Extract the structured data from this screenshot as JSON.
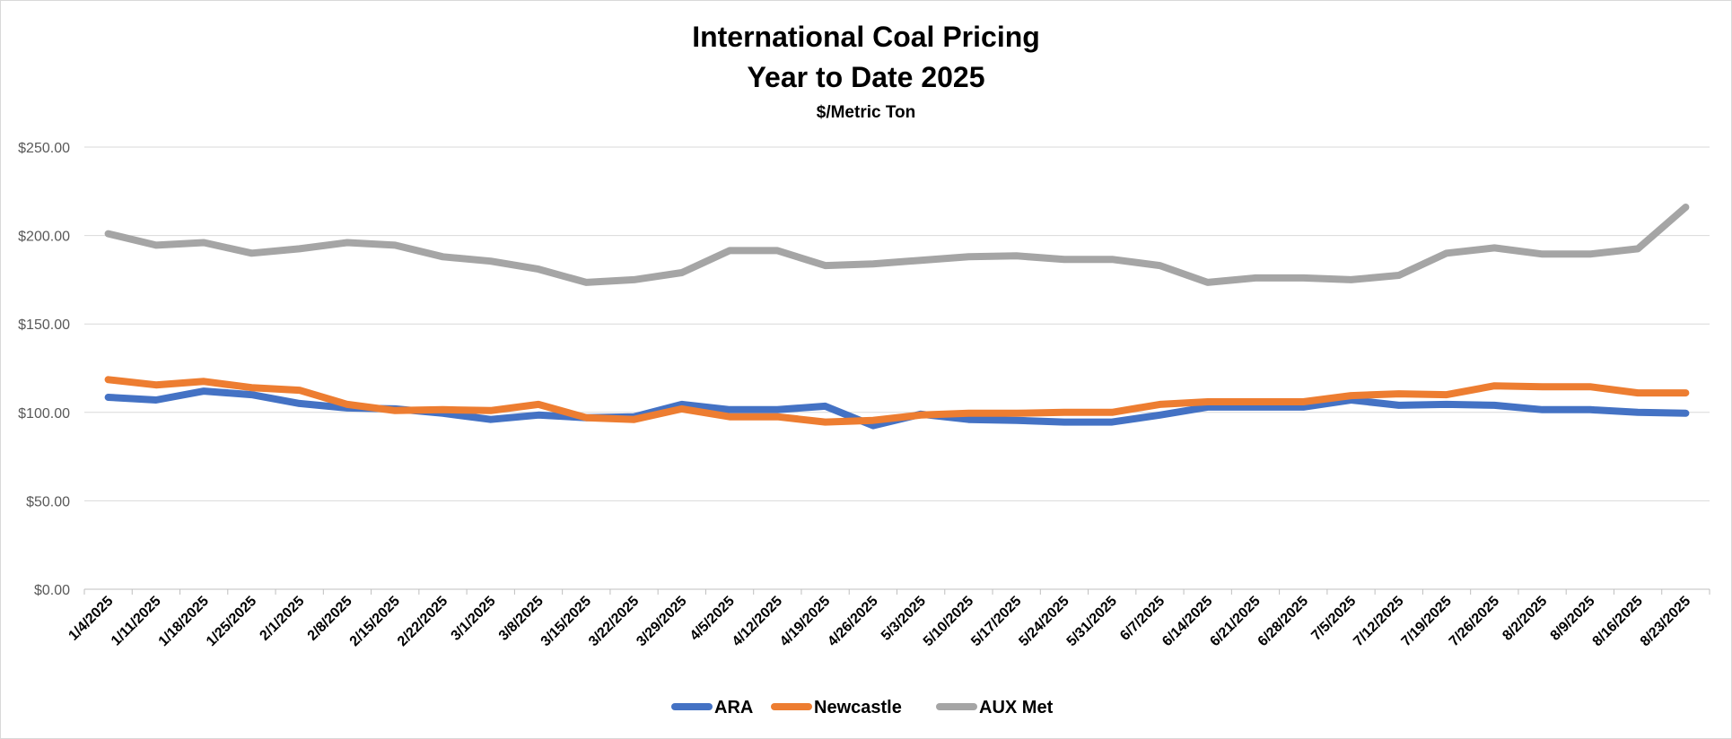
{
  "chart_data": {
    "type": "line",
    "title": "International Coal Pricing",
    "subtitle": "Year to Date 2025",
    "unit_label": "$/Metric Ton",
    "ylim": [
      0,
      250
    ],
    "y_ticks": [
      "$0.00",
      "$50.00",
      "$100.00",
      "$150.00",
      "$200.00",
      "$250.00"
    ],
    "y_tick_values": [
      0,
      50,
      100,
      150,
      200,
      250
    ],
    "grid": true,
    "legend_position": "bottom",
    "categories": [
      "1/4/2025",
      "1/11/2025",
      "1/18/2025",
      "1/25/2025",
      "2/1/2025",
      "2/8/2025",
      "2/15/2025",
      "2/22/2025",
      "3/1/2025",
      "3/8/2025",
      "3/15/2025",
      "3/22/2025",
      "3/29/2025",
      "4/5/2025",
      "4/12/2025",
      "4/19/2025",
      "4/26/2025",
      "5/3/2025",
      "5/10/2025",
      "5/17/2025",
      "5/24/2025",
      "5/31/2025",
      "6/7/2025",
      "6/14/2025",
      "6/21/2025",
      "6/28/2025",
      "7/5/2025",
      "7/12/2025",
      "7/19/2025",
      "7/26/2025",
      "8/2/2025",
      "8/9/2025",
      "8/16/2025",
      "8/23/2025"
    ],
    "series": [
      {
        "name": "ARA",
        "color": "#4472C4",
        "values": [
          108.5,
          107,
          112,
          110,
          105,
          102.5,
          102,
          99.5,
          96,
          98.5,
          97,
          97.5,
          104.5,
          101.5,
          101.5,
          103.5,
          92.5,
          99,
          96,
          95.5,
          94.5,
          94.5,
          98.5,
          103,
          103,
          103,
          107,
          104,
          104.5,
          104,
          101.5,
          101.5,
          100,
          99.5
        ]
      },
      {
        "name": "Newcastle",
        "color": "#ED7D31",
        "values": [
          118.5,
          115.5,
          117.5,
          114,
          112.5,
          104.5,
          101,
          101.5,
          101,
          104.5,
          97,
          96,
          102,
          97.5,
          97.5,
          94.5,
          95.5,
          98.5,
          99.5,
          99.5,
          100,
          100,
          104.5,
          106,
          106,
          106,
          109.5,
          110.5,
          110,
          115,
          114.5,
          114.5,
          111,
          111
        ]
      },
      {
        "name": "AUX Met",
        "color": "#A5A5A5",
        "values": [
          201,
          194.5,
          196,
          190,
          192.5,
          196,
          194.5,
          188,
          185.5,
          181,
          173.5,
          175,
          179,
          191.5,
          191.5,
          183,
          184,
          186,
          188,
          188.5,
          186.5,
          186.5,
          183,
          173.5,
          176,
          176,
          175,
          177.5,
          190,
          193,
          189.5,
          189.5,
          192.5,
          216
        ]
      }
    ]
  }
}
